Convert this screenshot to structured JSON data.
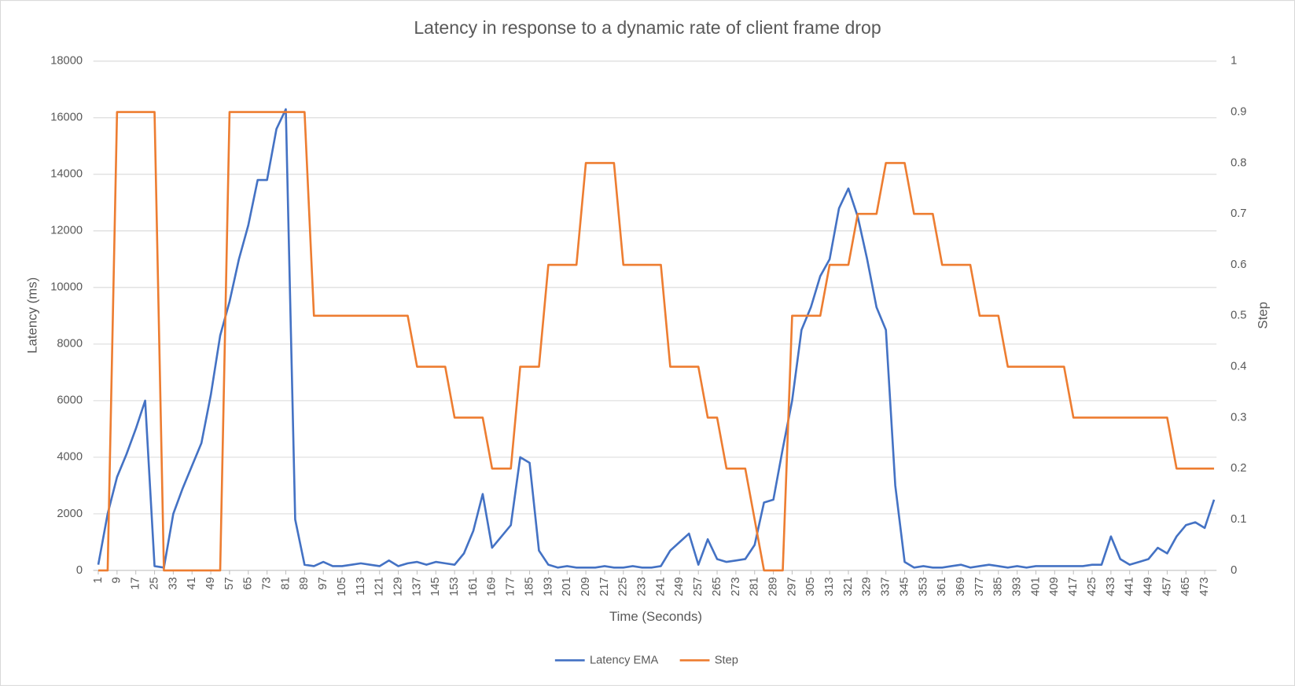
{
  "chart_data": {
    "type": "line",
    "title": "Latency in response to a dynamic rate of client frame drop",
    "x_label": "Time (Seconds)",
    "y_label": "Latency (ms)",
    "y2_label": "Step",
    "x": [
      1,
      5,
      9,
      13,
      17,
      21,
      25,
      29,
      33,
      37,
      41,
      45,
      49,
      53,
      57,
      61,
      65,
      69,
      73,
      77,
      81,
      85,
      89,
      93,
      97,
      101,
      105,
      109,
      113,
      117,
      121,
      125,
      129,
      133,
      137,
      141,
      145,
      149,
      153,
      157,
      161,
      165,
      169,
      173,
      177,
      181,
      185,
      189,
      193,
      197,
      201,
      205,
      209,
      213,
      217,
      221,
      225,
      229,
      233,
      237,
      241,
      245,
      249,
      253,
      257,
      261,
      265,
      269,
      273,
      277,
      281,
      285,
      289,
      293,
      297,
      301,
      305,
      309,
      313,
      317,
      321,
      325,
      329,
      333,
      337,
      341,
      345,
      349,
      353,
      357,
      361,
      365,
      369,
      373,
      377,
      381,
      385,
      389,
      393,
      397,
      401,
      405,
      409,
      413,
      417,
      421,
      425,
      429,
      433,
      437,
      441,
      445,
      449,
      453,
      457,
      461,
      465,
      469,
      473,
      477
    ],
    "xlim": [
      1,
      477
    ],
    "xticks": [
      1,
      9,
      17,
      25,
      33,
      41,
      49,
      57,
      65,
      73,
      81,
      89,
      97,
      105,
      113,
      121,
      129,
      137,
      145,
      153,
      161,
      169,
      177,
      185,
      193,
      201,
      209,
      217,
      225,
      233,
      241,
      249,
      257,
      265,
      273,
      281,
      289,
      297,
      305,
      313,
      321,
      329,
      337,
      345,
      353,
      361,
      369,
      377,
      385,
      393,
      401,
      409,
      417,
      425,
      433,
      441,
      449,
      457,
      465,
      473
    ],
    "ylim": [
      0,
      18000
    ],
    "yticks": [
      0,
      2000,
      4000,
      6000,
      8000,
      10000,
      12000,
      14000,
      16000,
      18000
    ],
    "y2lim": [
      0,
      1
    ],
    "y2ticks": [
      0,
      0.1,
      0.2,
      0.3,
      0.4,
      0.5,
      0.6,
      0.7,
      0.8,
      0.9,
      1
    ],
    "grid": true,
    "legend": "bottom",
    "series": [
      {
        "name": "Latency EMA",
        "color": "#4472c4",
        "values": [
          200,
          2000,
          3300,
          4100,
          5000,
          6000,
          150,
          100,
          2000,
          2900,
          3700,
          4500,
          6200,
          8300,
          9500,
          11000,
          12200,
          13800,
          13800,
          15600,
          16300,
          1800,
          200,
          150,
          300,
          150,
          150,
          200,
          250,
          200,
          150,
          350,
          150,
          250,
          300,
          200,
          300,
          250,
          200,
          600,
          1400,
          2700,
          800,
          1200,
          1600,
          4000,
          3800,
          700,
          200,
          100,
          150,
          100,
          100,
          100,
          150,
          100,
          100,
          150,
          100,
          100,
          150,
          700,
          1000,
          1300,
          200,
          1100,
          400,
          300,
          350,
          400,
          900,
          2400,
          2500,
          4300,
          6000,
          8500,
          9300,
          10400,
          11000,
          12800,
          13500,
          12500,
          11000,
          9300,
          8500,
          3000,
          300,
          100,
          150,
          100,
          100,
          150,
          200,
          100,
          150,
          200,
          150,
          100,
          150,
          100,
          150,
          150,
          150,
          150,
          150,
          150,
          200,
          200,
          1200,
          400,
          200,
          300,
          400,
          800,
          600,
          1200,
          1600,
          1700,
          1500,
          2500
        ]
      },
      {
        "name": "Step",
        "color": "#ed7d31",
        "axis": "y2",
        "values": [
          0,
          0,
          0.9,
          0.9,
          0.9,
          0.9,
          0.9,
          0,
          0,
          0,
          0,
          0,
          0,
          0,
          0.9,
          0.9,
          0.9,
          0.9,
          0.9,
          0.9,
          0.9,
          0.9,
          0.9,
          0.5,
          0.5,
          0.5,
          0.5,
          0.5,
          0.5,
          0.5,
          0.5,
          0.5,
          0.5,
          0.5,
          0.4,
          0.4,
          0.4,
          0.4,
          0.3,
          0.3,
          0.3,
          0.3,
          0.2,
          0.2,
          0.2,
          0.4,
          0.4,
          0.4,
          0.6,
          0.6,
          0.6,
          0.6,
          0.8,
          0.8,
          0.8,
          0.8,
          0.6,
          0.6,
          0.6,
          0.6,
          0.6,
          0.4,
          0.4,
          0.4,
          0.4,
          0.3,
          0.3,
          0.2,
          0.2,
          0.2,
          0.1,
          0,
          0,
          0,
          0.5,
          0.5,
          0.5,
          0.5,
          0.6,
          0.6,
          0.6,
          0.7,
          0.7,
          0.7,
          0.8,
          0.8,
          0.8,
          0.7,
          0.7,
          0.7,
          0.6,
          0.6,
          0.6,
          0.6,
          0.5,
          0.5,
          0.5,
          0.4,
          0.4,
          0.4,
          0.4,
          0.4,
          0.4,
          0.4,
          0.3,
          0.3,
          0.3,
          0.3,
          0.3,
          0.3,
          0.3,
          0.3,
          0.3,
          0.3,
          0.3,
          0.2,
          0.2,
          0.2,
          0.2,
          0.2
        ]
      }
    ]
  }
}
